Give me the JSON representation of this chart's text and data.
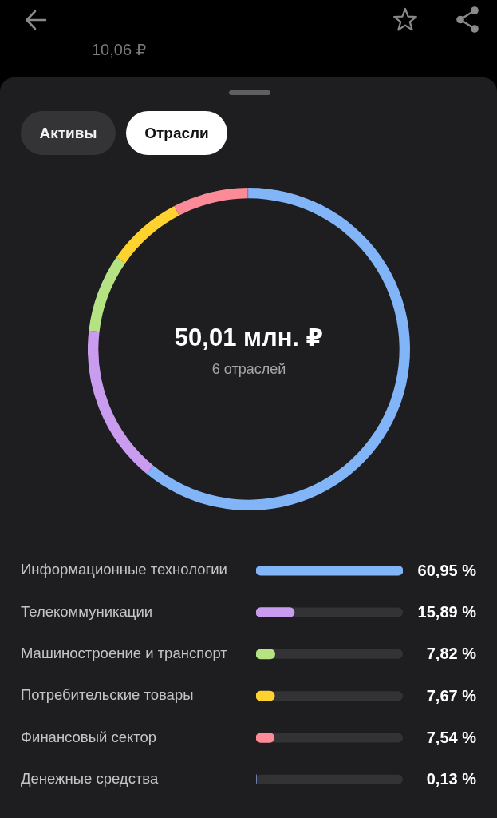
{
  "chart_data": [
    {
      "type": "donut",
      "subtitle": "10,06 ₽",
      "categories": [
        null,
        null,
        null,
        null,
        null,
        null
      ],
      "values": [
        60.95,
        15.89,
        7.82,
        7.67,
        7.54,
        0.13
      ],
      "colors": [
        "#82b4f8",
        "#c99cef",
        "#b5e384",
        "#fed32f",
        "#fc8a97",
        "#8a9fe3"
      ],
      "annotations": [
        "Активы",
        "Отрасли",
        "50,01 млн. ₽",
        "6 отраслей"
      ]
    },
    {
      "type": "bar",
      "orientation": "horizontal",
      "categories": [
        "Информационные технологии",
        "Телекоммуникации",
        "Машиностроение и транспорт",
        "Потребительские товары",
        "Финансовый сектор",
        "Денежные средства"
      ],
      "values": [
        60.95,
        15.89,
        7.82,
        7.67,
        7.54,
        0.13
      ],
      "colors": [
        "#82b4f8",
        "#c99cef",
        "#b5e384",
        "#fed32f",
        "#fc8a97",
        "#8a9fe3"
      ],
      "value_labels": [
        "60,95 %",
        "15,89 %",
        "7,82 %",
        "7,67 %",
        "7,54 %",
        "0,13 %"
      ],
      "xlim": [
        0,
        60.95
      ],
      "tick_labels": "y"
    }
  ]
}
